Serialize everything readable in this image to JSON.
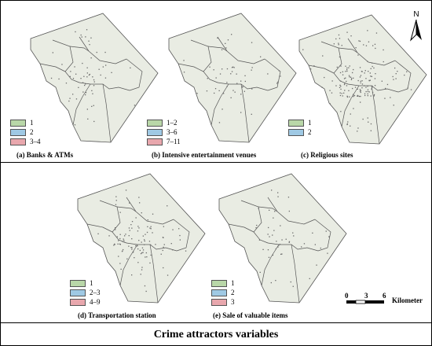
{
  "figure": {
    "title": "Crime attractors variables"
  },
  "panels": [
    {
      "id": "a",
      "caption": "(a) Banks & ATMs",
      "legend": [
        {
          "label": "1",
          "color": "#b9d7a8"
        },
        {
          "label": "2",
          "color": "#9fc9e4"
        },
        {
          "label": "3–4",
          "color": "#e8a7ad"
        }
      ]
    },
    {
      "id": "b",
      "caption": "(b) Intensive entertainment venues",
      "legend": [
        {
          "label": "1–2",
          "color": "#b9d7a8"
        },
        {
          "label": "3–6",
          "color": "#9fc9e4"
        },
        {
          "label": "7–11",
          "color": "#e8a7ad"
        }
      ]
    },
    {
      "id": "c",
      "caption": "(c) Religious sites",
      "legend": [
        {
          "label": "1",
          "color": "#b9d7a8"
        },
        {
          "label": "2",
          "color": "#9fc9e4"
        }
      ]
    },
    {
      "id": "d",
      "caption": "(d) Transportation station",
      "legend": [
        {
          "label": "1",
          "color": "#b9d7a8"
        },
        {
          "label": "2–3",
          "color": "#9fc9e4"
        },
        {
          "label": "4–9",
          "color": "#e8a7ad"
        }
      ]
    },
    {
      "id": "e",
      "caption": "(e) Sale of valuable items",
      "legend": [
        {
          "label": "1",
          "color": "#b9d7a8"
        },
        {
          "label": "2",
          "color": "#9fc9e4"
        },
        {
          "label": "3",
          "color": "#e8a7ad"
        }
      ]
    }
  ],
  "north_arrow": {
    "label": "N"
  },
  "scale_bar": {
    "ticks": [
      "0",
      "3",
      "6"
    ],
    "unit": "Kilometer"
  },
  "colors": {
    "map_fill": "#e9ece3",
    "boundary": "#555555",
    "points": "#6a6a6a"
  },
  "icons": [
    "north-arrow-icon",
    "scale-bar-icon"
  ]
}
